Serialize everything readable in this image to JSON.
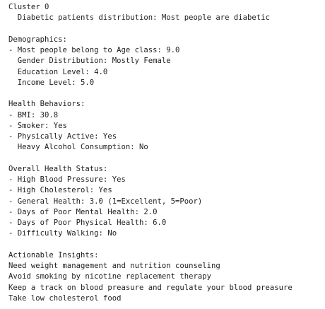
{
  "blocks": [
    {
      "heading": "Cluster 0",
      "lines": [
        "  Diabetic patients distribution: Most people are diabetic"
      ]
    },
    {
      "heading": "Demographics:",
      "lines": [
        "- Most people belong to Age class: 9.0",
        "  Gender Distribution: Mostly Female",
        "  Education Level: 4.0",
        "  Income Level: 5.0"
      ]
    },
    {
      "heading": "Health Behaviors:",
      "lines": [
        "- BMI: 30.8",
        "- Smoker: Yes",
        "- Physically Active: Yes",
        "  Heavy Alcohol Consumption: No"
      ]
    },
    {
      "heading": "Overall Health Status:",
      "lines": [
        "- High Blood Pressure: Yes",
        "- High Cholesterol: Yes",
        "- General Health: 3.0 (1=Excellent, 5=Poor)",
        "- Days of Poor Mental Health: 2.0",
        "- Days of Poor Physical Health: 6.0",
        "- Difficulty Walking: No"
      ]
    },
    {
      "heading": "Actionable Insights:",
      "lines": [
        "Need weight management and nutrition counseling",
        "Avoid smoking by nicotine replacement therapy",
        "Keep a track on blood preasure and regulate your blood preasure",
        "Take low cholesterol food"
      ]
    }
  ]
}
